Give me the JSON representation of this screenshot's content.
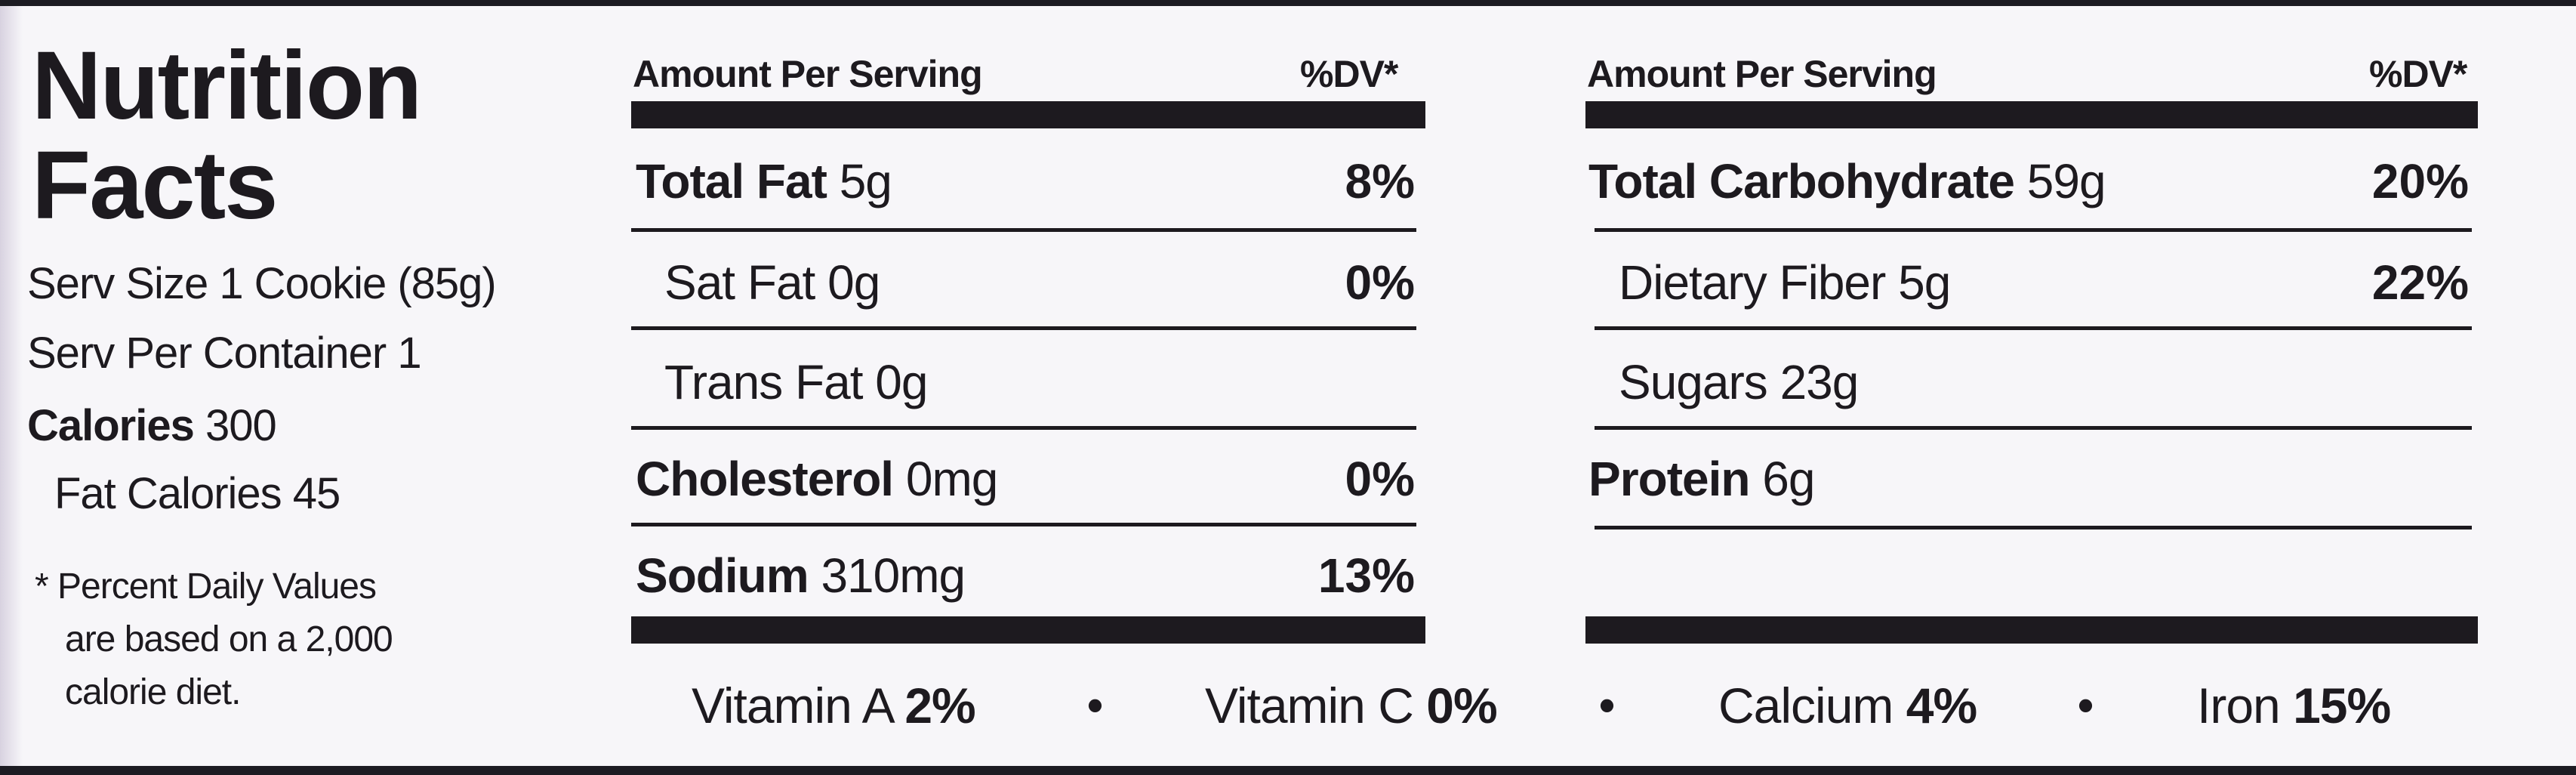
{
  "title_line1": "Nutrition",
  "title_line2": "Facts",
  "serving_size": "Serv Size 1 Cookie (85g)",
  "servings_per_container": "Serv Per Container 1",
  "calories": {
    "label": "Calories",
    "value": "300"
  },
  "fat_calories": "Fat Calories 45",
  "footnote": [
    "* Percent Daily Values",
    "are based on a 2,000",
    "calorie diet."
  ],
  "left_panel": {
    "header": {
      "amount": "Amount Per Serving",
      "dv": "%DV*"
    },
    "rows": [
      {
        "name": "Total Fat",
        "amount": "5g",
        "dv": "8%",
        "bold": true
      },
      {
        "name": "Sat Fat",
        "amount": "0g",
        "dv": "0%",
        "bold": false
      },
      {
        "name": "Trans Fat",
        "amount": "0g",
        "dv": "",
        "bold": false
      },
      {
        "name": "Cholesterol",
        "amount": "0mg",
        "dv": "0%",
        "bold": true
      },
      {
        "name": "Sodium",
        "amount": "310mg",
        "dv": "13%",
        "bold": true
      }
    ]
  },
  "right_panel": {
    "header": {
      "amount": "Amount Per Serving",
      "dv": "%DV*"
    },
    "rows": [
      {
        "name": "Total Carbohydrate",
        "amount": "59g",
        "dv": "20%",
        "bold": true
      },
      {
        "name": "Dietary Fiber",
        "amount": "5g",
        "dv": "22%",
        "bold": false
      },
      {
        "name": "Sugars",
        "amount": "23g",
        "dv": "",
        "bold": false
      },
      {
        "name": "Protein",
        "amount": "6g",
        "dv": "",
        "bold": true
      }
    ]
  },
  "vitamins": [
    {
      "name": "Vitamin A",
      "value": "2%"
    },
    {
      "name": "Vitamin C",
      "value": "0%"
    },
    {
      "name": "Calcium",
      "value": "4%"
    },
    {
      "name": "Iron",
      "value": "15%"
    }
  ],
  "separator": "•"
}
